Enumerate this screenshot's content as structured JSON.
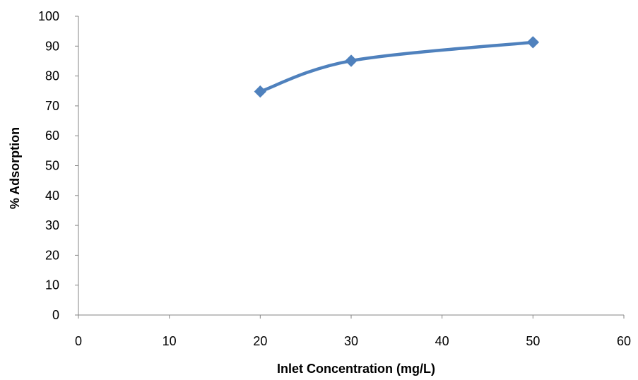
{
  "chart_data": {
    "type": "scatter",
    "title": "",
    "xlabel": "Inlet Concentration (mg/L)",
    "ylabel": "% Adsorption",
    "xlim": [
      0,
      60
    ],
    "ylim": [
      0,
      100
    ],
    "x_ticks": [
      0,
      10,
      20,
      30,
      40,
      50,
      60
    ],
    "y_ticks": [
      0,
      10,
      20,
      30,
      40,
      50,
      60,
      70,
      80,
      90,
      100
    ],
    "grid": false,
    "legend": "none",
    "line_style": "smooth",
    "marker": "diamond",
    "series": [
      {
        "name": "",
        "color": "#4F81BD",
        "x": [
          20,
          30,
          50
        ],
        "y": [
          74.8,
          85.1,
          91.3
        ]
      }
    ]
  }
}
